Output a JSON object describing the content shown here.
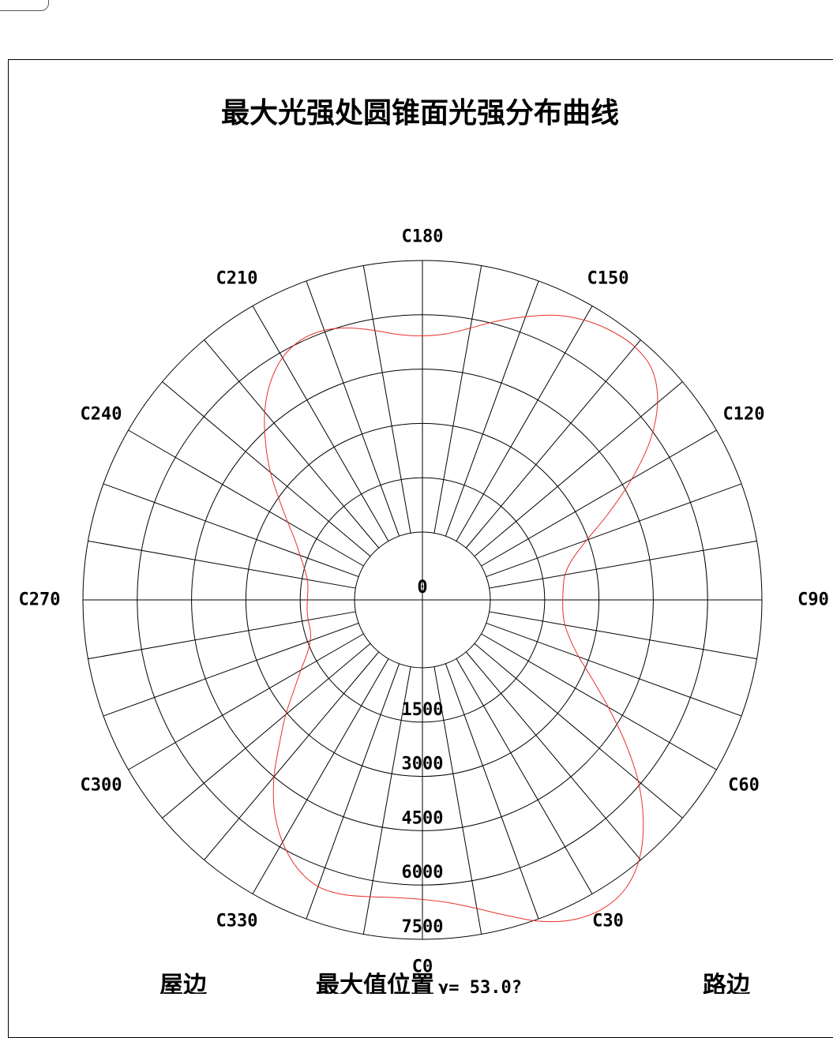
{
  "chart_data": {
    "type": "polar",
    "title": "最大光强处圆锥面光强分布曲线",
    "angle_labels": [
      {
        "angle": 180,
        "text": "C180"
      },
      {
        "angle": 150,
        "text": "C150"
      },
      {
        "angle": 210,
        "text": "C210"
      },
      {
        "angle": 120,
        "text": "C120"
      },
      {
        "angle": 240,
        "text": "C240"
      },
      {
        "angle": 90,
        "text": "C90"
      },
      {
        "angle": 270,
        "text": "C270"
      },
      {
        "angle": 60,
        "text": "C60"
      },
      {
        "angle": 300,
        "text": "C300"
      },
      {
        "angle": 30,
        "text": "C30"
      },
      {
        "angle": 330,
        "text": "C330"
      },
      {
        "angle": 0,
        "text": "C0"
      }
    ],
    "radial_ticks": [
      {
        "value": 0,
        "text": "0"
      },
      {
        "value": 1500,
        "text": "1500"
      },
      {
        "value": 3000,
        "text": "3000"
      },
      {
        "value": 4500,
        "text": "4500"
      },
      {
        "value": 6000,
        "text": "6000"
      },
      {
        "value": 7500,
        "text": "7500"
      }
    ],
    "rlim": [
      0,
      7500
    ],
    "r_offset": 1000,
    "angular_grid_step": 10,
    "series": [
      {
        "color": "#e8312a",
        "points": [
          [
            0,
            5400
          ],
          [
            5,
            5520
          ],
          [
            10,
            5780
          ],
          [
            15,
            6150
          ],
          [
            20,
            6570
          ],
          [
            25,
            6880
          ],
          [
            30,
            7000
          ],
          [
            35,
            6880
          ],
          [
            40,
            6450
          ],
          [
            45,
            5750
          ],
          [
            50,
            4900
          ],
          [
            55,
            3950
          ],
          [
            60,
            3050
          ],
          [
            65,
            2300
          ],
          [
            70,
            1720
          ],
          [
            75,
            1350
          ],
          [
            80,
            1120
          ],
          [
            85,
            1020
          ],
          [
            90,
            1000
          ],
          [
            95,
            1030
          ],
          [
            100,
            1120
          ],
          [
            105,
            1400
          ],
          [
            110,
            1950
          ],
          [
            115,
            2800
          ],
          [
            120,
            3800
          ],
          [
            125,
            4800
          ],
          [
            130,
            5600
          ],
          [
            135,
            6100
          ],
          [
            140,
            6250
          ],
          [
            145,
            6200
          ],
          [
            150,
            6050
          ],
          [
            155,
            5800
          ],
          [
            160,
            5450
          ],
          [
            165,
            5100
          ],
          [
            170,
            4750
          ],
          [
            175,
            4500
          ],
          [
            180,
            4420
          ],
          [
            185,
            4480
          ],
          [
            190,
            4680
          ],
          [
            195,
            4900
          ],
          [
            200,
            5050
          ],
          [
            205,
            5050
          ],
          [
            210,
            4850
          ],
          [
            215,
            4450
          ],
          [
            220,
            3900
          ],
          [
            225,
            3250
          ],
          [
            230,
            2600
          ],
          [
            235,
            1950
          ],
          [
            240,
            1420
          ],
          [
            245,
            1000
          ],
          [
            250,
            720
          ],
          [
            255,
            500
          ],
          [
            260,
            350
          ],
          [
            265,
            300
          ],
          [
            270,
            300
          ],
          [
            275,
            320
          ],
          [
            280,
            330
          ],
          [
            285,
            330
          ],
          [
            290,
            420
          ],
          [
            295,
            640
          ],
          [
            300,
            1000
          ],
          [
            305,
            1450
          ],
          [
            310,
            2050
          ],
          [
            315,
            2700
          ],
          [
            320,
            3500
          ],
          [
            325,
            4250
          ],
          [
            330,
            4850
          ],
          [
            335,
            5300
          ],
          [
            340,
            5550
          ],
          [
            345,
            5550
          ],
          [
            350,
            5450
          ],
          [
            355,
            5380
          ]
        ]
      }
    ]
  },
  "footer": {
    "left": "屋边",
    "center_label": "最大值位置",
    "center_value": "γ= 53.0?",
    "right": "路边"
  }
}
